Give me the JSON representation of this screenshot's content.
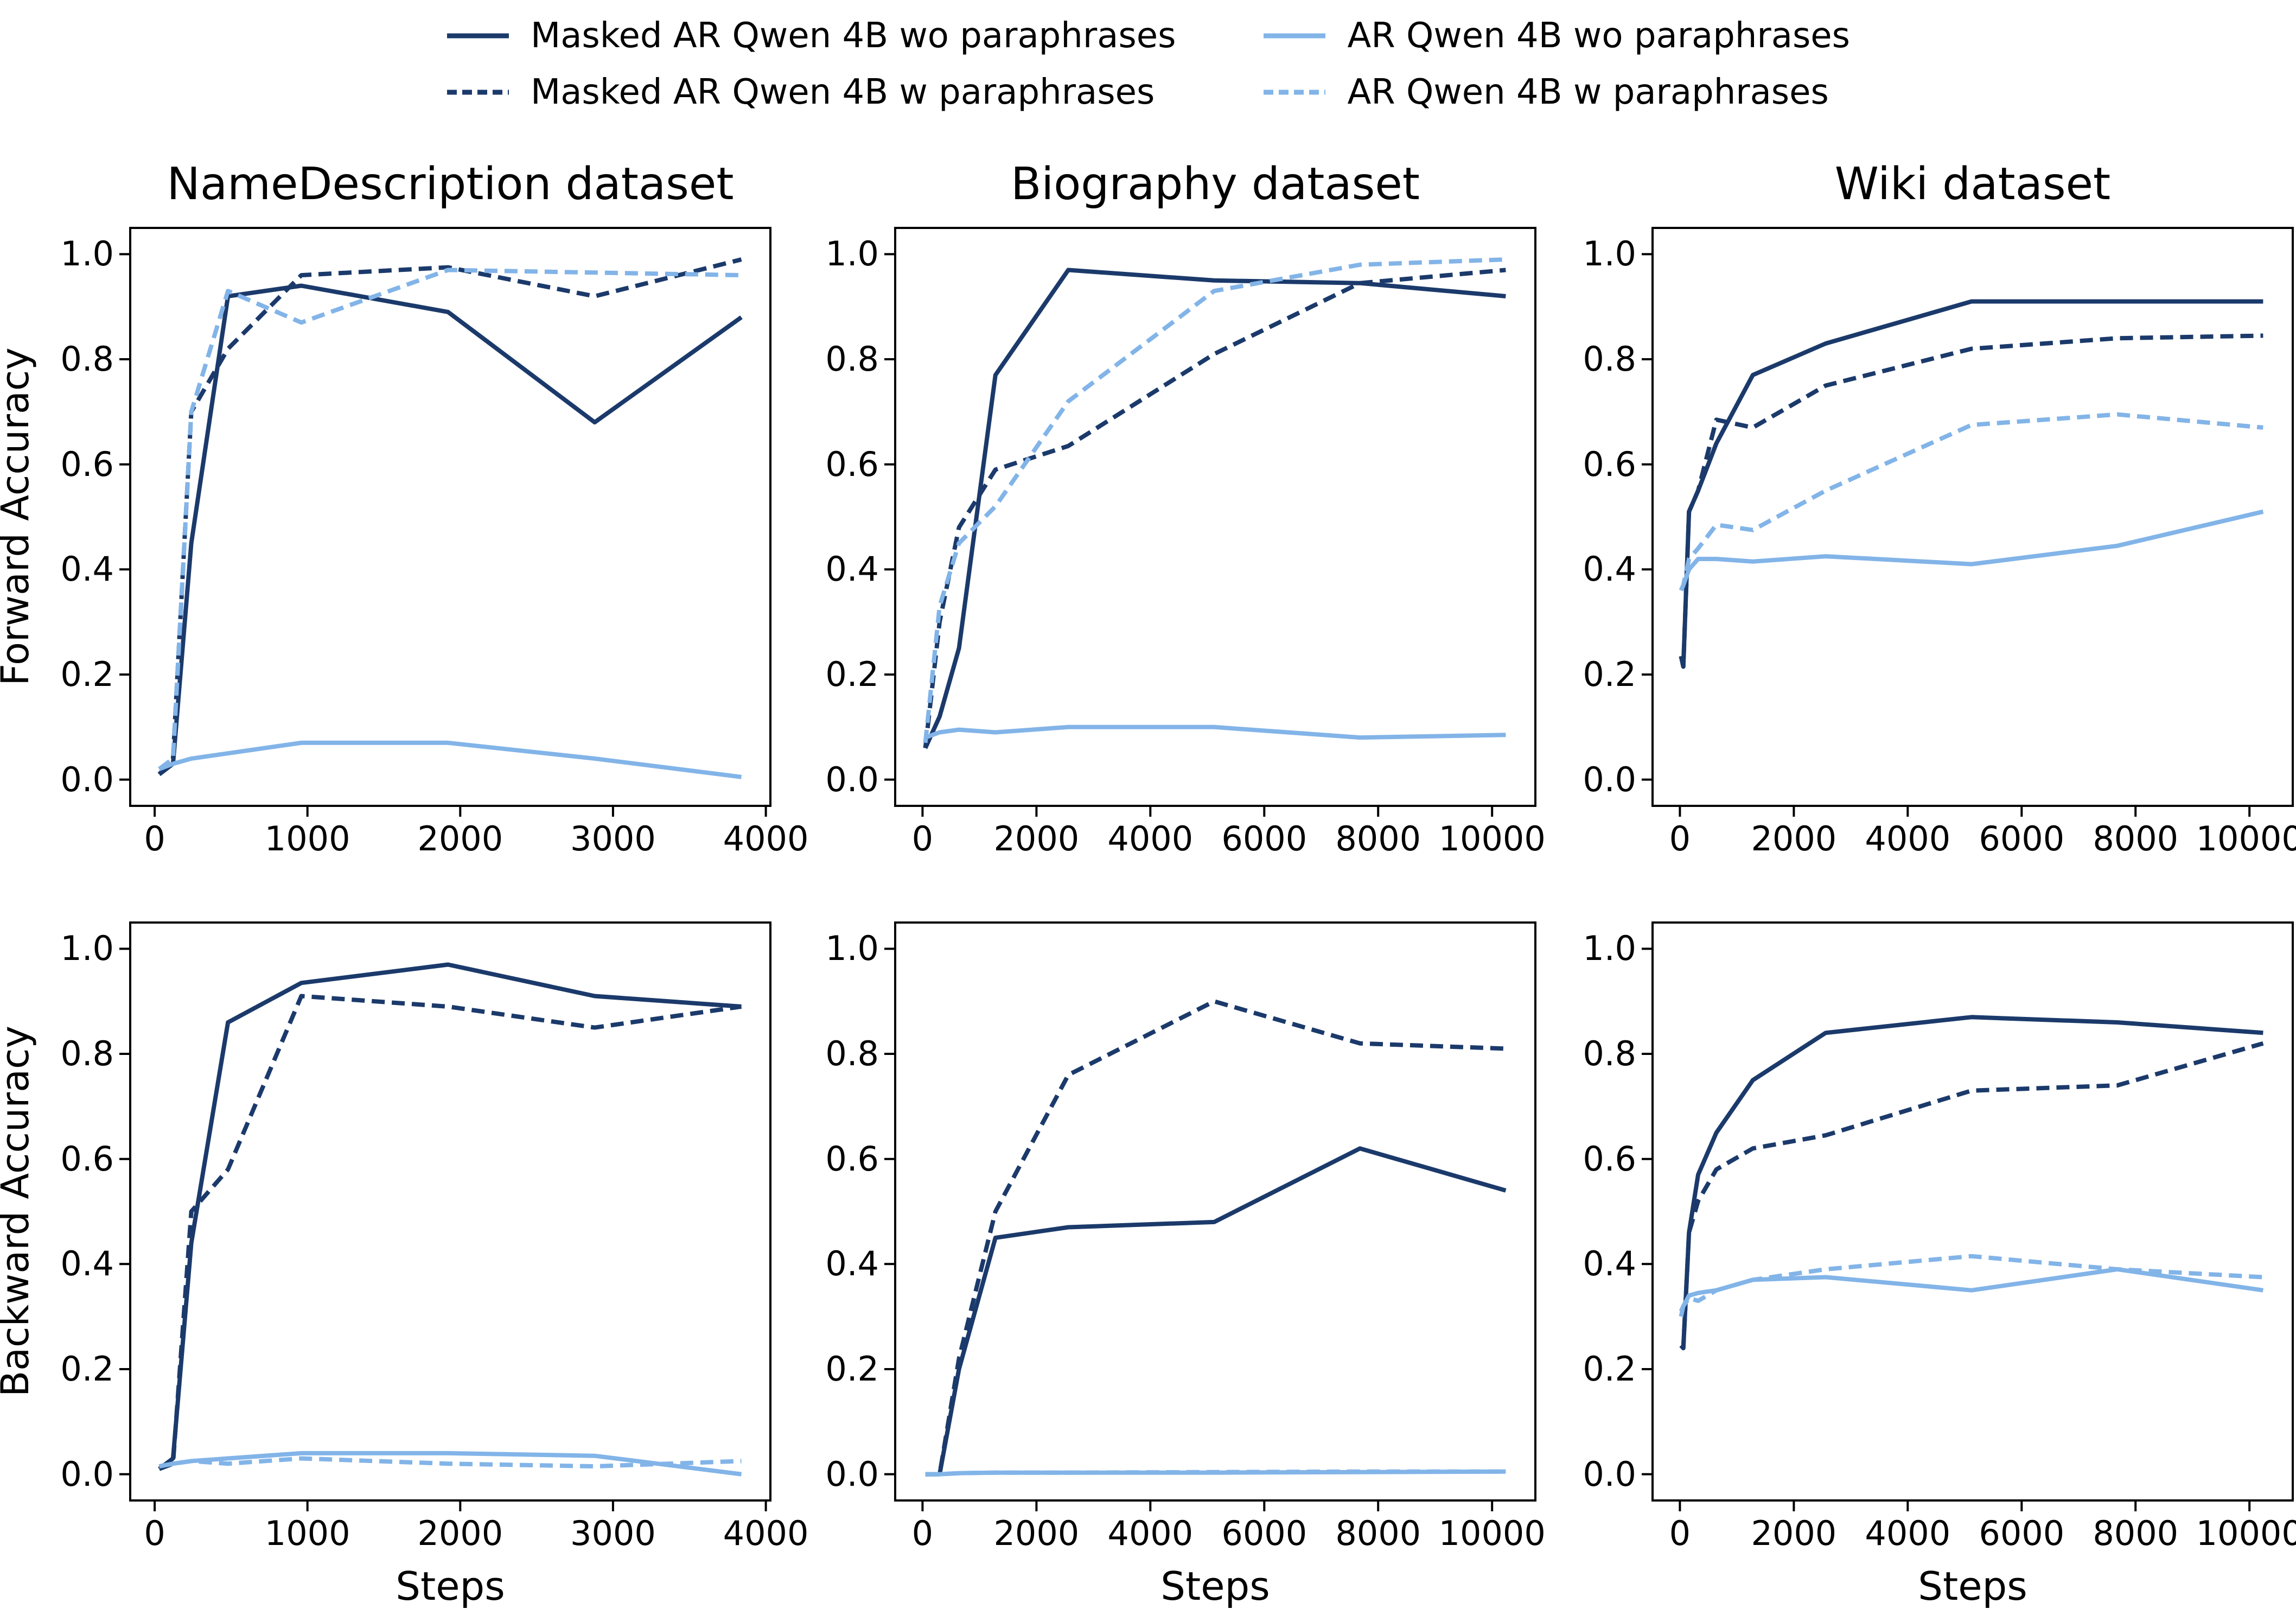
{
  "colors": {
    "navy": "#1b3a6b",
    "light_blue": "#82b4e8",
    "axis": "#000000"
  },
  "legend": {
    "entries": [
      {
        "label": "Masked AR Qwen 4B wo paraphrases",
        "color": "#1b3a6b",
        "dash": false
      },
      {
        "label": "Masked AR Qwen 4B w paraphrases",
        "color": "#1b3a6b",
        "dash": true
      },
      {
        "label": "AR Qwen 4B wo paraphrases",
        "color": "#82b4e8",
        "dash": false
      },
      {
        "label": "AR Qwen 4B w paraphrases",
        "color": "#82b4e8",
        "dash": true
      }
    ]
  },
  "ylabels": [
    "Forward Accuracy",
    "Backward Accuracy"
  ],
  "xlabel": "Steps",
  "chart_data": [
    {
      "type": "line",
      "title": "NameDescription dataset",
      "ylabel": "Forward Accuracy",
      "xlim": [
        -160,
        4030
      ],
      "ylim": [
        -0.05,
        1.05
      ],
      "xticks": [
        0,
        1000,
        2000,
        3000,
        4000
      ],
      "xticklabels": [
        "0",
        "1000",
        "2000",
        "3000",
        "4000"
      ],
      "yticks": [
        0.0,
        0.2,
        0.4,
        0.6,
        0.8,
        1.0
      ],
      "yticklabels": [
        "0.0",
        "0.2",
        "0.4",
        "0.6",
        "0.8",
        "1.0"
      ],
      "x": [
        30,
        120,
        240,
        480,
        960,
        1920,
        2880,
        3840
      ],
      "series": [
        {
          "name": "Masked AR Qwen 4B wo paraphrases",
          "color_key": "navy",
          "dash": false,
          "values": [
            0.01,
            0.03,
            0.45,
            0.92,
            0.94,
            0.89,
            0.68,
            0.88
          ]
        },
        {
          "name": "Masked AR Qwen 4B w paraphrases",
          "color_key": "navy",
          "dash": true,
          "values": [
            0.01,
            0.04,
            0.7,
            0.82,
            0.96,
            0.975,
            0.92,
            0.99
          ]
        },
        {
          "name": "AR Qwen 4B wo paraphrases",
          "color_key": "light_blue",
          "dash": false,
          "values": [
            0.02,
            0.03,
            0.04,
            0.05,
            0.07,
            0.07,
            0.04,
            0.005
          ]
        },
        {
          "name": "AR Qwen 4B w paraphrases",
          "color_key": "light_blue",
          "dash": true,
          "values": [
            0.02,
            0.04,
            0.7,
            0.93,
            0.87,
            0.97,
            0.965,
            0.96
          ]
        }
      ]
    },
    {
      "type": "line",
      "title": "Biography dataset",
      "ylabel": "Forward Accuracy",
      "xlim": [
        -480,
        10760
      ],
      "ylim": [
        -0.05,
        1.05
      ],
      "xticks": [
        0,
        2000,
        4000,
        6000,
        8000,
        10000
      ],
      "xticklabels": [
        "0",
        "2000",
        "4000",
        "6000",
        "8000",
        "10000"
      ],
      "yticks": [
        0.0,
        0.2,
        0.4,
        0.6,
        0.8,
        1.0
      ],
      "yticklabels": [
        "0.0",
        "0.2",
        "0.4",
        "0.6",
        "0.8",
        "1.0"
      ],
      "x": [
        50,
        300,
        640,
        1280,
        2560,
        5120,
        7680,
        10240
      ],
      "series": [
        {
          "name": "Masked AR Qwen 4B wo paraphrases",
          "color_key": "navy",
          "dash": false,
          "values": [
            0.06,
            0.12,
            0.25,
            0.77,
            0.97,
            0.95,
            0.945,
            0.92
          ]
        },
        {
          "name": "Masked AR Qwen 4B w paraphrases",
          "color_key": "navy",
          "dash": true,
          "values": [
            0.06,
            0.3,
            0.48,
            0.59,
            0.635,
            0.81,
            0.945,
            0.97
          ]
        },
        {
          "name": "AR Qwen 4B wo paraphrases",
          "color_key": "light_blue",
          "dash": false,
          "values": [
            0.08,
            0.09,
            0.095,
            0.09,
            0.1,
            0.1,
            0.08,
            0.085
          ]
        },
        {
          "name": "AR Qwen 4B w paraphrases",
          "color_key": "light_blue",
          "dash": true,
          "values": [
            0.07,
            0.33,
            0.45,
            0.52,
            0.72,
            0.93,
            0.98,
            0.99
          ]
        }
      ]
    },
    {
      "type": "line",
      "title": "Wiki dataset",
      "ylabel": "Forward Accuracy",
      "xlim": [
        -480,
        10760
      ],
      "ylim": [
        -0.05,
        1.05
      ],
      "xticks": [
        0,
        2000,
        4000,
        6000,
        8000,
        10000
      ],
      "xticklabels": [
        "0",
        "2000",
        "4000",
        "6000",
        "8000",
        "10000"
      ],
      "yticks": [
        0.0,
        0.2,
        0.4,
        0.6,
        0.8,
        1.0
      ],
      "yticklabels": [
        "0.0",
        "0.2",
        "0.4",
        "0.6",
        "0.8",
        "1.0"
      ],
      "x": [
        20,
        60,
        160,
        320,
        640,
        1280,
        2560,
        5120,
        7680,
        10240
      ],
      "series": [
        {
          "name": "Masked AR Qwen 4B wo paraphrases",
          "color_key": "navy",
          "dash": false,
          "values": [
            0.235,
            0.215,
            0.51,
            0.55,
            0.64,
            0.77,
            0.83,
            0.91,
            0.91,
            0.91
          ]
        },
        {
          "name": "Masked AR Qwen 4B w paraphrases",
          "color_key": "navy",
          "dash": true,
          "values": [
            0.235,
            0.215,
            0.51,
            0.55,
            0.685,
            0.67,
            0.75,
            0.82,
            0.84,
            0.845
          ]
        },
        {
          "name": "AR Qwen 4B wo paraphrases",
          "color_key": "light_blue",
          "dash": false,
          "values": [
            0.36,
            0.37,
            0.4,
            0.42,
            0.42,
            0.415,
            0.425,
            0.41,
            0.445,
            0.51
          ]
        },
        {
          "name": "AR Qwen 4B w paraphrases",
          "color_key": "light_blue",
          "dash": true,
          "values": [
            0.36,
            0.37,
            0.42,
            0.44,
            0.485,
            0.475,
            0.55,
            0.675,
            0.695,
            0.67
          ]
        }
      ]
    },
    {
      "type": "line",
      "title": "",
      "ylabel": "Backward Accuracy",
      "xlim": [
        -160,
        4030
      ],
      "ylim": [
        -0.05,
        1.05
      ],
      "xticks": [
        0,
        1000,
        2000,
        3000,
        4000
      ],
      "xticklabels": [
        "0",
        "1000",
        "2000",
        "3000",
        "4000"
      ],
      "yticks": [
        0.0,
        0.2,
        0.4,
        0.6,
        0.8,
        1.0
      ],
      "yticklabels": [
        "0.0",
        "0.2",
        "0.4",
        "0.6",
        "0.8",
        "1.0"
      ],
      "x": [
        30,
        120,
        240,
        480,
        960,
        1920,
        2880,
        3840
      ],
      "series": [
        {
          "name": "Masked AR Qwen 4B wo paraphrases",
          "color_key": "navy",
          "dash": false,
          "values": [
            0.01,
            0.03,
            0.44,
            0.86,
            0.935,
            0.97,
            0.91,
            0.89
          ]
        },
        {
          "name": "Masked AR Qwen 4B w paraphrases",
          "color_key": "navy",
          "dash": true,
          "values": [
            0.01,
            0.02,
            0.5,
            0.58,
            0.91,
            0.89,
            0.85,
            0.89
          ]
        },
        {
          "name": "AR Qwen 4B wo paraphrases",
          "color_key": "light_blue",
          "dash": false,
          "values": [
            0.015,
            0.02,
            0.025,
            0.03,
            0.04,
            0.04,
            0.035,
            0.0
          ]
        },
        {
          "name": "AR Qwen 4B w paraphrases",
          "color_key": "light_blue",
          "dash": true,
          "values": [
            0.015,
            0.02,
            0.025,
            0.02,
            0.03,
            0.02,
            0.015,
            0.025
          ]
        }
      ]
    },
    {
      "type": "line",
      "title": "",
      "ylabel": "Backward Accuracy",
      "xlim": [
        -480,
        10760
      ],
      "ylim": [
        -0.05,
        1.05
      ],
      "xticks": [
        0,
        2000,
        4000,
        6000,
        8000,
        10000
      ],
      "xticklabels": [
        "0",
        "2000",
        "4000",
        "6000",
        "8000",
        "10000"
      ],
      "yticks": [
        0.0,
        0.2,
        0.4,
        0.6,
        0.8,
        1.0
      ],
      "yticklabels": [
        "0.0",
        "0.2",
        "0.4",
        "0.6",
        "0.8",
        "1.0"
      ],
      "x": [
        50,
        300,
        640,
        1280,
        2560,
        5120,
        7680,
        10240
      ],
      "series": [
        {
          "name": "Masked AR Qwen 4B wo paraphrases",
          "color_key": "navy",
          "dash": false,
          "values": [
            0.0,
            0.0,
            0.2,
            0.45,
            0.47,
            0.48,
            0.62,
            0.54
          ]
        },
        {
          "name": "Masked AR Qwen 4B w paraphrases",
          "color_key": "navy",
          "dash": true,
          "values": [
            0.0,
            0.0,
            0.22,
            0.5,
            0.76,
            0.9,
            0.82,
            0.81
          ]
        },
        {
          "name": "AR Qwen 4B wo paraphrases",
          "color_key": "light_blue",
          "dash": false,
          "values": [
            0.0,
            0.0,
            0.002,
            0.003,
            0.003,
            0.003,
            0.004,
            0.005
          ]
        },
        {
          "name": "AR Qwen 4B w paraphrases",
          "color_key": "light_blue",
          "dash": true,
          "values": [
            0.0,
            0.0,
            0.002,
            0.003,
            0.003,
            0.004,
            0.005,
            0.005
          ]
        }
      ]
    },
    {
      "type": "line",
      "title": "",
      "ylabel": "Backward Accuracy",
      "xlim": [
        -480,
        10760
      ],
      "ylim": [
        -0.05,
        1.05
      ],
      "xticks": [
        0,
        2000,
        4000,
        6000,
        8000,
        10000
      ],
      "xticklabels": [
        "0",
        "2000",
        "4000",
        "6000",
        "8000",
        "10000"
      ],
      "yticks": [
        0.0,
        0.2,
        0.4,
        0.6,
        0.8,
        1.0
      ],
      "yticklabels": [
        "0.0",
        "0.2",
        "0.4",
        "0.6",
        "0.8",
        "1.0"
      ],
      "x": [
        20,
        60,
        160,
        320,
        640,
        1280,
        2560,
        5120,
        7680,
        10240
      ],
      "series": [
        {
          "name": "Masked AR Qwen 4B wo paraphrases",
          "color_key": "navy",
          "dash": false,
          "values": [
            0.245,
            0.24,
            0.46,
            0.57,
            0.65,
            0.75,
            0.84,
            0.87,
            0.86,
            0.84
          ]
        },
        {
          "name": "Masked AR Qwen 4B w paraphrases",
          "color_key": "navy",
          "dash": true,
          "values": [
            0.245,
            0.24,
            0.46,
            0.52,
            0.58,
            0.62,
            0.645,
            0.73,
            0.74,
            0.82
          ]
        },
        {
          "name": "AR Qwen 4B wo paraphrases",
          "color_key": "light_blue",
          "dash": false,
          "values": [
            0.3,
            0.32,
            0.34,
            0.345,
            0.35,
            0.37,
            0.375,
            0.35,
            0.39,
            0.35
          ]
        },
        {
          "name": "AR Qwen 4B w paraphrases",
          "color_key": "light_blue",
          "dash": true,
          "values": [
            0.31,
            0.32,
            0.335,
            0.33,
            0.35,
            0.37,
            0.39,
            0.415,
            0.39,
            0.375
          ]
        }
      ]
    }
  ]
}
